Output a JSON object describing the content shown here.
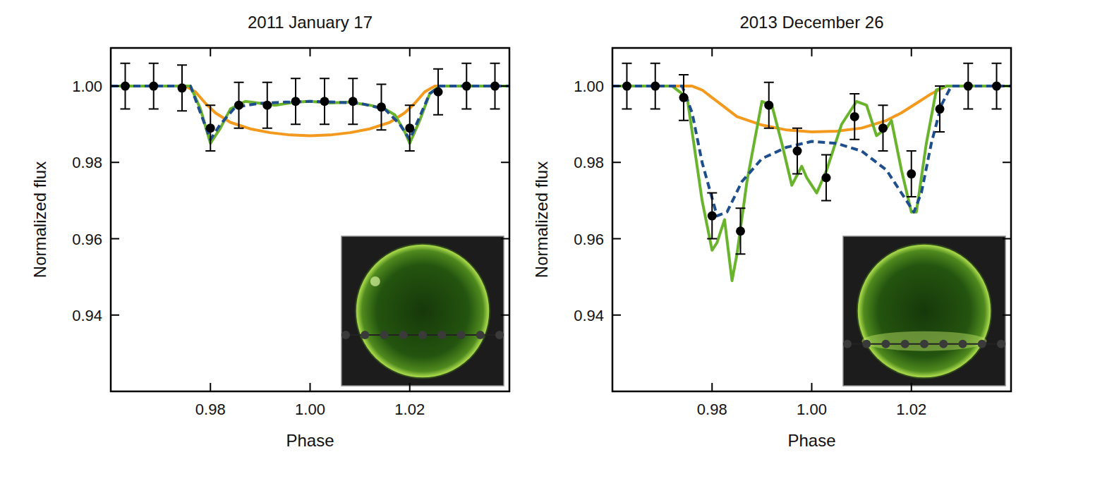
{
  "chart_data": [
    {
      "type": "line",
      "title": "2011 January 17",
      "x_label": "Phase",
      "y_label": "Normalized flux",
      "xlim": [
        0.96,
        1.04
      ],
      "ylim": [
        0.92,
        1.01
      ],
      "xticks": [
        0.98,
        {
          "value": 1,
          "label": "1.00"
        },
        1.02
      ],
      "yticks": [
        0.94,
        0.96,
        0.98,
        {
          "value": 1,
          "label": "1.00"
        }
      ],
      "series": [
        {
          "type": "line",
          "color": "#f39a1e",
          "line_style": "solid",
          "x": [
            0.96,
            0.975,
            0.977,
            0.979,
            0.981,
            0.984,
            0.988,
            0.992,
            0.996,
            1.0,
            1.004,
            1.008,
            1.012,
            1.016,
            1.019,
            1.021,
            1.023,
            1.025,
            1.04
          ],
          "values": [
            1.0,
            1.0,
            0.9985,
            0.9955,
            0.993,
            0.9905,
            0.9888,
            0.9878,
            0.9872,
            0.987,
            0.9872,
            0.9878,
            0.9888,
            0.9905,
            0.993,
            0.9955,
            0.9985,
            1.0,
            1.0
          ]
        },
        {
          "type": "line",
          "color": "#6ab42d",
          "line_style": "solid",
          "x": [
            0.96,
            0.976,
            0.978,
            0.98,
            0.982,
            0.984,
            0.987,
            0.99,
            0.993,
            0.997,
            1.0,
            1.004,
            1.008,
            1.012,
            1.015,
            1.017,
            1.019,
            1.02,
            1.022,
            1.024,
            1.026,
            1.04
          ],
          "values": [
            1.0,
            1.0,
            0.994,
            0.985,
            0.989,
            0.994,
            0.996,
            0.9955,
            0.995,
            0.9958,
            0.996,
            0.9956,
            0.9958,
            0.995,
            0.994,
            0.9925,
            0.988,
            0.985,
            0.991,
            0.998,
            1.0,
            1.0
          ]
        },
        {
          "type": "line",
          "color": "#1f4e8c",
          "line_style": "dashed",
          "x": [
            0.96,
            0.976,
            0.978,
            0.98,
            0.982,
            0.985,
            0.99,
            0.995,
            1.0,
            1.005,
            1.01,
            1.015,
            1.018,
            1.02,
            1.022,
            1.024,
            1.026,
            1.04
          ],
          "values": [
            1.0,
            1.0,
            0.993,
            0.986,
            0.99,
            0.9945,
            0.9955,
            0.9958,
            0.996,
            0.9958,
            0.9955,
            0.994,
            0.99,
            0.986,
            0.992,
            0.998,
            1.0,
            1.0
          ]
        },
        {
          "type": "scatter",
          "color": "#000000",
          "marker": "circle",
          "x": [
            0.9629,
            0.9686,
            0.9743,
            0.98,
            0.9857,
            0.9914,
            0.9971,
            1.0029,
            1.0086,
            1.0143,
            1.02,
            1.0257,
            1.0314,
            1.0371
          ],
          "values": [
            1.0,
            1.0,
            0.9995,
            0.989,
            0.995,
            0.995,
            0.996,
            0.996,
            0.996,
            0.9945,
            0.989,
            0.9985,
            1.0,
            1.0
          ],
          "errors": [
            0.006,
            0.006,
            0.006,
            0.006,
            0.006,
            0.006,
            0.006,
            0.006,
            0.006,
            0.006,
            0.006,
            0.006,
            0.006,
            0.006
          ]
        }
      ]
    },
    {
      "type": "line",
      "title": "2013 December 26",
      "x_label": "Phase",
      "y_label": "Normalized flux",
      "xlim": [
        0.96,
        1.04
      ],
      "ylim": [
        0.92,
        1.01
      ],
      "xticks": [
        0.98,
        {
          "value": 1,
          "label": "1.00"
        },
        1.02
      ],
      "yticks": [
        0.94,
        0.96,
        0.98,
        {
          "value": 1,
          "label": "1.00"
        }
      ],
      "series": [
        {
          "type": "line",
          "color": "#f39a1e",
          "line_style": "solid",
          "x": [
            0.96,
            0.976,
            0.978,
            0.98,
            0.982,
            0.985,
            0.99,
            0.995,
            1.0,
            1.005,
            1.01,
            1.015,
            1.018,
            1.021,
            1.024,
            1.027,
            1.04
          ],
          "values": [
            1.0,
            1.0,
            0.999,
            0.997,
            0.995,
            0.992,
            0.9898,
            0.9885,
            0.988,
            0.9882,
            0.989,
            0.991,
            0.993,
            0.9955,
            0.998,
            1.0,
            1.0
          ]
        },
        {
          "type": "line",
          "color": "#6ab42d",
          "line_style": "solid",
          "x": [
            0.96,
            0.972,
            0.975,
            0.978,
            0.98,
            0.981,
            0.9825,
            0.984,
            0.985,
            0.987,
            0.99,
            0.992,
            0.994,
            0.996,
            0.998,
            0.999,
            1.001,
            1.003,
            1.006,
            1.009,
            1.011,
            1.013,
            1.015,
            1.016,
            1.018,
            1.02,
            1.021,
            1.023,
            1.025,
            1.027,
            1.04
          ],
          "values": [
            1.0,
            1.0,
            0.997,
            0.97,
            0.957,
            0.959,
            0.965,
            0.949,
            0.956,
            0.975,
            0.996,
            0.995,
            0.985,
            0.974,
            0.979,
            0.976,
            0.972,
            0.978,
            0.99,
            0.996,
            0.995,
            0.987,
            0.989,
            0.991,
            0.978,
            0.967,
            0.967,
            0.985,
            0.999,
            1.0,
            1.0
          ]
        },
        {
          "type": "line",
          "color": "#1f4e8c",
          "line_style": "dashed",
          "x": [
            0.96,
            0.974,
            0.976,
            0.978,
            0.981,
            0.983,
            0.986,
            0.99,
            0.995,
            1.0,
            1.005,
            1.01,
            1.015,
            1.018,
            1.0205,
            1.022,
            1.024,
            1.026,
            1.028,
            1.04
          ],
          "values": [
            1.0,
            1.0,
            0.993,
            0.98,
            0.966,
            0.967,
            0.975,
            0.981,
            0.984,
            0.9855,
            0.985,
            0.983,
            0.978,
            0.972,
            0.967,
            0.972,
            0.985,
            0.995,
            1.0,
            1.0
          ]
        },
        {
          "type": "scatter",
          "color": "#000000",
          "marker": "circle",
          "x": [
            0.9629,
            0.9686,
            0.9743,
            0.98,
            0.9857,
            0.9914,
            0.9971,
            1.0029,
            1.0086,
            1.0143,
            1.02,
            1.0257,
            1.0314,
            1.0371
          ],
          "values": [
            1.0,
            1.0,
            0.997,
            0.966,
            0.962,
            0.995,
            0.983,
            0.976,
            0.992,
            0.989,
            0.977,
            0.994,
            1.0,
            1.0
          ],
          "errors": [
            0.006,
            0.006,
            0.006,
            0.006,
            0.006,
            0.006,
            0.006,
            0.006,
            0.006,
            0.006,
            0.006,
            0.006,
            0.006,
            0.006
          ]
        }
      ]
    }
  ]
}
